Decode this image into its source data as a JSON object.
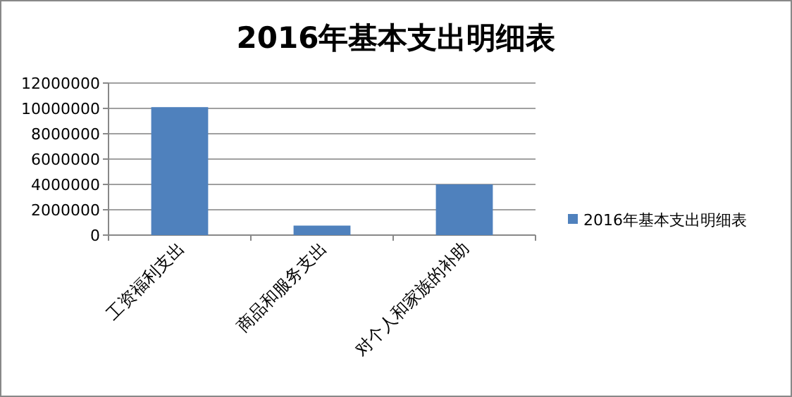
{
  "chart_data": {
    "type": "bar",
    "title": "2016年基本支出明细表",
    "categories": [
      "工资福利支出",
      "商品和服务支出",
      "对个人和家族的补助"
    ],
    "series": [
      {
        "name": "2016年基本支出明细表",
        "color": "#4f81bd",
        "values": [
          10100000,
          750000,
          4000000
        ]
      }
    ],
    "ylim": [
      0,
      12000000
    ],
    "yticks": [
      0,
      2000000,
      4000000,
      6000000,
      8000000,
      10000000,
      12000000
    ],
    "grid": "y",
    "legend": "right"
  }
}
